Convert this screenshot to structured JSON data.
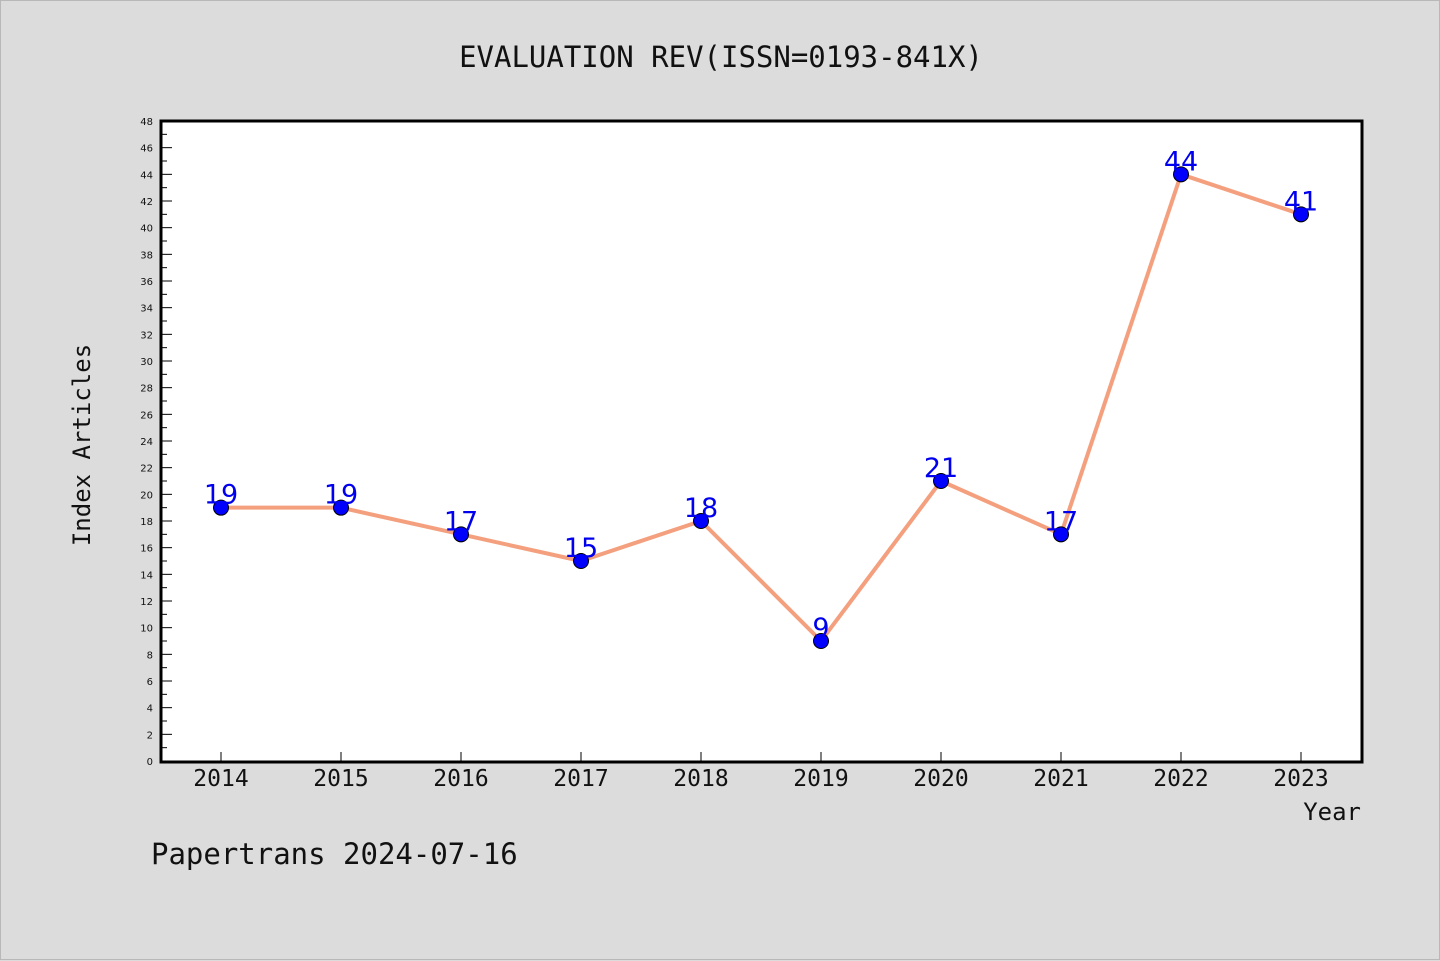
{
  "chart_data": {
    "type": "line",
    "title": "EVALUATION REV(ISSN=0193-841X)",
    "xlabel": "Year",
    "ylabel": "Index Articles",
    "categories": [
      "2014",
      "2015",
      "2016",
      "2017",
      "2018",
      "2019",
      "2020",
      "2021",
      "2022",
      "2023"
    ],
    "series": [
      {
        "values": [
          19,
          19,
          17,
          15,
          18,
          9,
          21,
          17,
          44,
          41
        ]
      }
    ],
    "ylim": [
      0,
      48
    ],
    "y_major_step": 2,
    "y_minor_step": 1,
    "grid": false,
    "line_color": "#f4a07e",
    "marker_color": "#0000ff",
    "label_color": "#0000ee",
    "footer": "Papertrans 2024-07-16"
  }
}
